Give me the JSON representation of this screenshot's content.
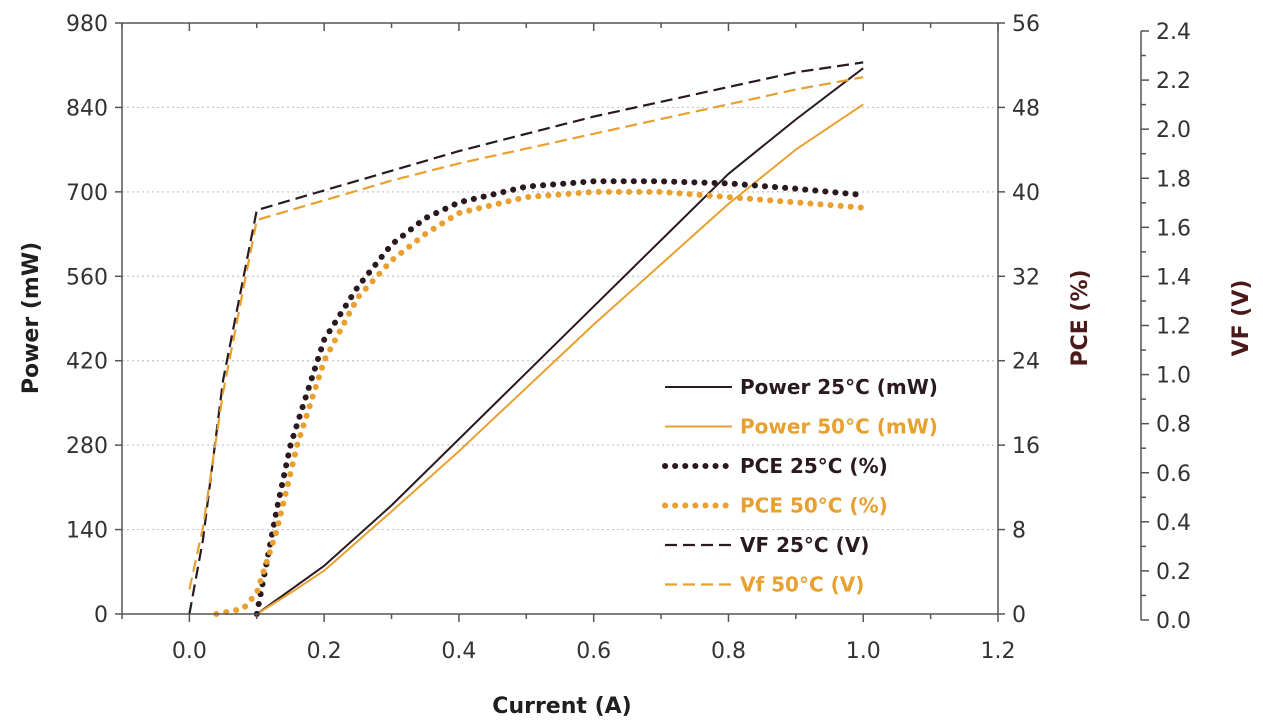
{
  "chart_data": {
    "type": "line",
    "xlabel": "Current (A)",
    "xlim": [
      -0.1,
      1.2
    ],
    "xticks": [
      "0.0",
      "0.2",
      "0.4",
      "0.6",
      "0.8",
      "1.0",
      "1.2"
    ],
    "xtick_values": [
      0,
      0.2,
      0.4,
      0.6,
      0.8,
      1.0,
      1.2
    ],
    "grid": "horizontal dotted",
    "legend_position": "lower-right",
    "axes": [
      {
        "id": "power",
        "side": "left",
        "label": "Power (mW)",
        "label_color": "#1f1f1f",
        "ylim": [
          0,
          980
        ],
        "ticks": [
          "0",
          "140",
          "280",
          "420",
          "560",
          "700",
          "840",
          "980"
        ],
        "tick_values": [
          0,
          140,
          280,
          420,
          560,
          700,
          840,
          980
        ]
      },
      {
        "id": "pce",
        "side": "right",
        "label": "PCE (%)",
        "label_color": "#4a1a1a",
        "ylim": [
          0,
          56
        ],
        "ticks": [
          "0",
          "8",
          "16",
          "24",
          "32",
          "40",
          "48",
          "56"
        ],
        "tick_values": [
          0,
          8,
          16,
          24,
          32,
          40,
          48,
          56
        ]
      },
      {
        "id": "vf",
        "side": "far-right",
        "label": "VF (V)",
        "label_color": "#4a1a1a",
        "ylim": [
          0,
          2.4
        ],
        "ticks": [
          "0.0",
          "0.2",
          "0.4",
          "0.6",
          "0.8",
          "1.0",
          "1.2",
          "1.4",
          "1.6",
          "1.8",
          "2.0",
          "2.2",
          "2.4"
        ],
        "tick_values": [
          0,
          0.2,
          0.4,
          0.6,
          0.8,
          1.0,
          1.2,
          1.4,
          1.6,
          1.8,
          2.0,
          2.2,
          2.4
        ]
      }
    ],
    "series": [
      {
        "name": "Power 25°C (mW)",
        "axis": "power",
        "style": "solid",
        "color": "#2a1a1f",
        "x": [
          0.1,
          0.15,
          0.2,
          0.3,
          0.4,
          0.5,
          0.6,
          0.7,
          0.8,
          0.9,
          1.0
        ],
        "y": [
          0,
          40,
          80,
          180,
          290,
          400,
          510,
          620,
          730,
          820,
          905
        ]
      },
      {
        "name": "Power 50°C (mW)",
        "axis": "power",
        "style": "solid",
        "color": "#e8a030",
        "x": [
          0.1,
          0.15,
          0.2,
          0.3,
          0.4,
          0.5,
          0.6,
          0.7,
          0.8,
          0.9,
          1.0
        ],
        "y": [
          0,
          35,
          72,
          170,
          270,
          375,
          480,
          580,
          680,
          770,
          845
        ]
      },
      {
        "name": "PCE 25°C (%)",
        "axis": "pce",
        "style": "dotted",
        "color": "#2a1a1f",
        "x": [
          0.1,
          0.13,
          0.15,
          0.17,
          0.2,
          0.25,
          0.3,
          0.35,
          0.4,
          0.5,
          0.6,
          0.7,
          0.8,
          0.9,
          1.0
        ],
        "y": [
          0,
          10,
          16,
          20,
          26,
          31,
          35,
          37.5,
          39,
          40.5,
          41,
          41,
          40.8,
          40.3,
          39.7
        ]
      },
      {
        "name": "PCE 50°C (%)",
        "axis": "pce",
        "style": "dotted",
        "color": "#e8a030",
        "x": [
          0.04,
          0.08,
          0.1,
          0.13,
          0.16,
          0.2,
          0.25,
          0.3,
          0.35,
          0.4,
          0.5,
          0.6,
          0.7,
          0.8,
          0.9,
          1.0
        ],
        "y": [
          0,
          0.5,
          2,
          8,
          16,
          24,
          30,
          33.5,
          36,
          38,
          39.5,
          40,
          40,
          39.5,
          39,
          38.5
        ]
      },
      {
        "name": "VF 25°C (V)",
        "axis": "vf",
        "style": "dashed",
        "color": "#2a1a1f",
        "x": [
          0.0,
          0.02,
          0.05,
          0.1,
          0.2,
          0.3,
          0.4,
          0.5,
          0.6,
          0.7,
          0.8,
          0.9,
          1.0
        ],
        "y": [
          0,
          0.3,
          0.95,
          1.64,
          1.72,
          1.8,
          1.88,
          1.95,
          2.02,
          2.08,
          2.14,
          2.2,
          2.24
        ]
      },
      {
        "name": "Vf 50°C (V)",
        "axis": "vf",
        "style": "dashed",
        "color": "#e8a030",
        "x": [
          0.0,
          0.02,
          0.05,
          0.1,
          0.2,
          0.3,
          0.4,
          0.5,
          0.6,
          0.7,
          0.8,
          0.9,
          1.0
        ],
        "y": [
          0.1,
          0.35,
          0.9,
          1.6,
          1.68,
          1.76,
          1.83,
          1.89,
          1.95,
          2.01,
          2.07,
          2.13,
          2.18
        ]
      }
    ]
  }
}
